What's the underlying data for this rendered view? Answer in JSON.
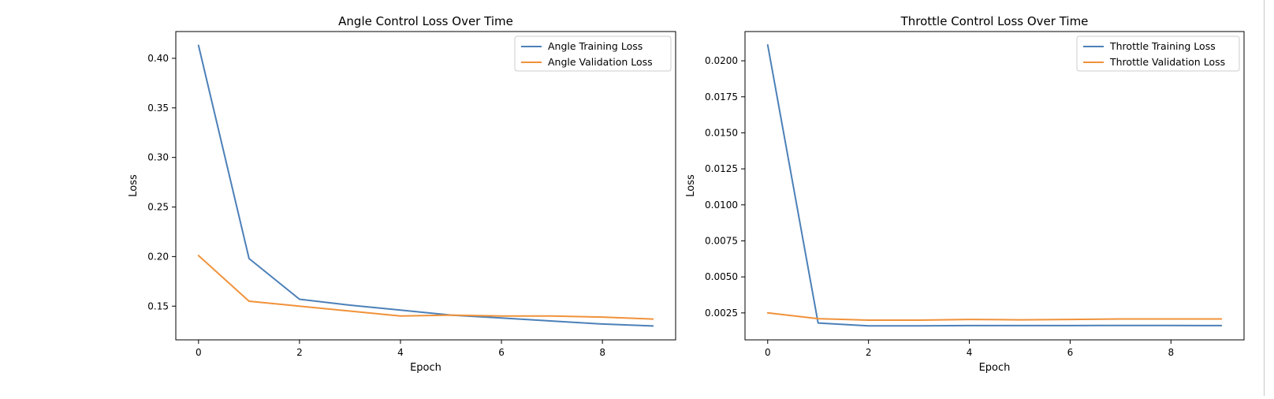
{
  "chart_data": [
    {
      "type": "line",
      "title": "Angle Control Loss Over Time",
      "xlabel": "Epoch",
      "ylabel": "Loss",
      "xlim": [
        -0.45,
        9.45
      ],
      "ylim": [
        0.116,
        0.427
      ],
      "xticks": [
        0,
        2,
        4,
        6,
        8
      ],
      "yticks": [
        0.15,
        0.2,
        0.25,
        0.3,
        0.35,
        0.4
      ],
      "ytick_labels": [
        "0.15",
        "0.20",
        "0.25",
        "0.30",
        "0.35",
        "0.40"
      ],
      "legend_position": "top-right",
      "grid": false,
      "x": [
        0,
        1,
        2,
        3,
        4,
        5,
        6,
        7,
        8,
        9
      ],
      "series": [
        {
          "name": "Angle Training Loss",
          "color": "#4c80b8",
          "values": [
            0.413,
            0.198,
            0.157,
            0.151,
            0.146,
            0.141,
            0.138,
            0.135,
            0.132,
            0.13
          ]
        },
        {
          "name": "Angle Validation Loss",
          "color": "#f0923a",
          "values": [
            0.201,
            0.155,
            0.15,
            0.145,
            0.14,
            0.141,
            0.14,
            0.14,
            0.139,
            0.137
          ]
        }
      ]
    },
    {
      "type": "line",
      "title": "Throttle Control Loss Over Time",
      "xlabel": "Epoch",
      "ylabel": "Loss",
      "xlim": [
        -0.45,
        9.45
      ],
      "ylim": [
        0.00063,
        0.02203
      ],
      "xticks": [
        0,
        2,
        4,
        6,
        8
      ],
      "yticks": [
        0.0025,
        0.005,
        0.0075,
        0.01,
        0.0125,
        0.015,
        0.0175,
        0.02
      ],
      "ytick_labels": [
        "0.0025",
        "0.0050",
        "0.0075",
        "0.0100",
        "0.0125",
        "0.0150",
        "0.0175",
        "0.0200"
      ],
      "legend_position": "top-right",
      "grid": false,
      "x": [
        0,
        1,
        2,
        3,
        4,
        5,
        6,
        7,
        8,
        9
      ],
      "series": [
        {
          "name": "Throttle Training Loss",
          "color": "#4c80b8",
          "values": [
            0.0211,
            0.0018,
            0.0016,
            0.0016,
            0.00162,
            0.00162,
            0.00162,
            0.00163,
            0.00163,
            0.00162
          ]
        },
        {
          "name": "Throttle Validation Loss",
          "color": "#f0923a",
          "values": [
            0.0025,
            0.0021,
            0.002,
            0.002,
            0.00205,
            0.00202,
            0.00205,
            0.00208,
            0.00208,
            0.00208
          ]
        }
      ]
    }
  ]
}
